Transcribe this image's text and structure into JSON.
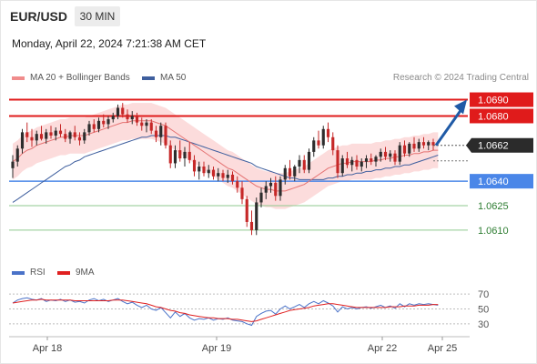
{
  "header": {
    "symbol": "EUR/USD",
    "timeframe": "30 MIN",
    "datetime": "Monday, April 22, 2024 7:21:38 AM CET"
  },
  "legend": {
    "ma20_label": "MA 20 + Bollinger Bands",
    "ma50_label": "MA 50",
    "rsi_label": "RSI",
    "ma9_label": "9MA",
    "credit": "Research © 2024 Trading Central"
  },
  "colors": {
    "up": "#2d2d2d",
    "down": "#c62828",
    "ma20": "#e57373",
    "ma50": "#3f5f9e",
    "bollinger_fill": "#fbd6d6",
    "resistance": "#e01b1b",
    "support": "#4a86e8",
    "target_line": "#8fca8f",
    "target_text": "#2e7d32",
    "rsi": "#4a72c8",
    "rsi_ma": "#e02020",
    "arrow": "#1f5aa6"
  },
  "chart_data": [
    {
      "type": "candlestick",
      "title": "EUR/USD",
      "timeframe": "30 MIN",
      "ylim": [
        1.0596,
        1.0697
      ],
      "x_ticks": [
        "Apr 18",
        "Apr 19",
        "Apr 22",
        "Apr 25"
      ],
      "last_price": "1.0662",
      "levels": [
        {
          "label": "1.0690",
          "value": 1.069,
          "kind": "resistance"
        },
        {
          "label": "1.0680",
          "value": 1.068,
          "kind": "resistance"
        },
        {
          "label": "1.0640",
          "value": 1.064,
          "kind": "support"
        },
        {
          "label": "1.0625",
          "value": 1.0625,
          "kind": "target"
        },
        {
          "label": "1.0610",
          "value": 1.061,
          "kind": "target"
        }
      ],
      "projection": {
        "from": 1.0662,
        "to": 1.069
      },
      "ohlc": [
        [
          1.0648,
          1.0656,
          1.0642,
          1.0652
        ],
        [
          1.0652,
          1.0662,
          1.0649,
          1.066
        ],
        [
          1.066,
          1.0672,
          1.0657,
          1.067
        ],
        [
          1.067,
          1.0676,
          1.0664,
          1.0667
        ],
        [
          1.0667,
          1.0672,
          1.0661,
          1.0665
        ],
        [
          1.0665,
          1.0671,
          1.0662,
          1.0669
        ],
        [
          1.0669,
          1.0674,
          1.0665,
          1.0666
        ],
        [
          1.0666,
          1.0672,
          1.0663,
          1.067
        ],
        [
          1.067,
          1.0674,
          1.0666,
          1.0668
        ],
        [
          1.0668,
          1.0673,
          1.0665,
          1.0671
        ],
        [
          1.0671,
          1.0675,
          1.0667,
          1.0669
        ],
        [
          1.0669,
          1.0672,
          1.0664,
          1.0666
        ],
        [
          1.0666,
          1.0671,
          1.0663,
          1.067
        ],
        [
          1.067,
          1.0674,
          1.0665,
          1.0667
        ],
        [
          1.0667,
          1.067,
          1.0662,
          1.0665
        ],
        [
          1.0665,
          1.0672,
          1.0663,
          1.067
        ],
        [
          1.067,
          1.0677,
          1.0668,
          1.0675
        ],
        [
          1.0675,
          1.0678,
          1.067,
          1.0672
        ],
        [
          1.0672,
          1.0679,
          1.067,
          1.0677
        ],
        [
          1.0677,
          1.0681,
          1.0673,
          1.0675
        ],
        [
          1.0675,
          1.068,
          1.0672,
          1.0678
        ],
        [
          1.0678,
          1.0682,
          1.0676,
          1.068
        ],
        [
          1.068,
          1.0687,
          1.0678,
          1.0685
        ],
        [
          1.0685,
          1.0688,
          1.0679,
          1.0681
        ],
        [
          1.0681,
          1.0684,
          1.0676,
          1.0678
        ],
        [
          1.0678,
          1.0683,
          1.0675,
          1.068
        ],
        [
          1.068,
          1.0682,
          1.0674,
          1.0676
        ],
        [
          1.0676,
          1.0679,
          1.0671,
          1.0674
        ],
        [
          1.0674,
          1.0678,
          1.067,
          1.0676
        ],
        [
          1.0676,
          1.0678,
          1.0669,
          1.0671
        ],
        [
          1.0671,
          1.0674,
          1.0664,
          1.0667
        ],
        [
          1.0667,
          1.0676,
          1.0662,
          1.0674
        ],
        [
          1.0674,
          1.0676,
          1.066,
          1.0662
        ],
        [
          1.0662,
          1.0665,
          1.0648,
          1.0651
        ],
        [
          1.0651,
          1.0662,
          1.0648,
          1.0659
        ],
        [
          1.0659,
          1.0665,
          1.0652,
          1.0654
        ],
        [
          1.0654,
          1.0661,
          1.0649,
          1.0658
        ],
        [
          1.0658,
          1.0664,
          1.0651,
          1.0653
        ],
        [
          1.0653,
          1.0656,
          1.0643,
          1.0646
        ],
        [
          1.0646,
          1.0652,
          1.0641,
          1.0649
        ],
        [
          1.0649,
          1.0652,
          1.0643,
          1.0645
        ],
        [
          1.0645,
          1.065,
          1.0642,
          1.0647
        ],
        [
          1.0647,
          1.0649,
          1.0641,
          1.0643
        ],
        [
          1.0643,
          1.0648,
          1.064,
          1.0645
        ],
        [
          1.0645,
          1.0647,
          1.064,
          1.0642
        ],
        [
          1.0642,
          1.0647,
          1.0639,
          1.0644
        ],
        [
          1.0644,
          1.0646,
          1.0638,
          1.064
        ],
        [
          1.064,
          1.0643,
          1.0633,
          1.0636
        ],
        [
          1.0636,
          1.064,
          1.0626,
          1.0629
        ],
        [
          1.0629,
          1.0631,
          1.0612,
          1.0615
        ],
        [
          1.0615,
          1.0622,
          1.0607,
          1.061
        ],
        [
          1.061,
          1.063,
          1.0607,
          1.0627
        ],
        [
          1.0627,
          1.0636,
          1.0624,
          1.0633
        ],
        [
          1.0633,
          1.064,
          1.0629,
          1.0637
        ],
        [
          1.0637,
          1.0642,
          1.0633,
          1.0639
        ],
        [
          1.0639,
          1.0643,
          1.0628,
          1.0631
        ],
        [
          1.0631,
          1.0643,
          1.0628,
          1.0641
        ],
        [
          1.0641,
          1.065,
          1.0638,
          1.0648
        ],
        [
          1.0648,
          1.0653,
          1.0641,
          1.0643
        ],
        [
          1.0643,
          1.065,
          1.064,
          1.0649
        ],
        [
          1.0649,
          1.0656,
          1.0645,
          1.0653
        ],
        [
          1.0653,
          1.0656,
          1.0645,
          1.0647
        ],
        [
          1.0647,
          1.066,
          1.0645,
          1.0658
        ],
        [
          1.0658,
          1.0667,
          1.0655,
          1.0665
        ],
        [
          1.0665,
          1.0671,
          1.066,
          1.0662
        ],
        [
          1.0662,
          1.0674,
          1.066,
          1.0672
        ],
        [
          1.0672,
          1.0676,
          1.0664,
          1.0667
        ],
        [
          1.0667,
          1.067,
          1.0656,
          1.0659
        ],
        [
          1.0659,
          1.0662,
          1.0642,
          1.0645
        ],
        [
          1.0645,
          1.0656,
          1.0643,
          1.0654
        ],
        [
          1.0654,
          1.0658,
          1.0648,
          1.065
        ],
        [
          1.065,
          1.0655,
          1.0646,
          1.0653
        ],
        [
          1.0653,
          1.0656,
          1.0647,
          1.0649
        ],
        [
          1.0649,
          1.0654,
          1.0646,
          1.0652
        ],
        [
          1.0652,
          1.0656,
          1.0648,
          1.0654
        ],
        [
          1.0654,
          1.0657,
          1.065,
          1.0652
        ],
        [
          1.0652,
          1.0656,
          1.0649,
          1.0655
        ],
        [
          1.0655,
          1.066,
          1.0652,
          1.0658
        ],
        [
          1.0658,
          1.0661,
          1.0653,
          1.0655
        ],
        [
          1.0655,
          1.0659,
          1.0652,
          1.0657
        ],
        [
          1.0657,
          1.0659,
          1.065,
          1.0652
        ],
        [
          1.0652,
          1.0664,
          1.065,
          1.0662
        ],
        [
          1.0662,
          1.0665,
          1.0655,
          1.0657
        ],
        [
          1.0657,
          1.0664,
          1.0655,
          1.0663
        ],
        [
          1.0663,
          1.0667,
          1.0658,
          1.066
        ],
        [
          1.066,
          1.0666,
          1.0658,
          1.0664
        ],
        [
          1.0664,
          1.0667,
          1.066,
          1.0662
        ],
        [
          1.0662,
          1.0665,
          1.0659,
          1.0664
        ],
        [
          1.0664,
          1.0666,
          1.0659,
          1.0662
        ]
      ],
      "series": [
        {
          "name": "MA 20",
          "values": [
            1.0652,
            1.0654,
            1.0657,
            1.0659,
            1.066,
            1.0662,
            1.0663,
            1.0664,
            1.0665,
            1.0666,
            1.0667,
            1.0667,
            1.0668,
            1.0668,
            1.0668,
            1.0668,
            1.0669,
            1.067,
            1.0671,
            1.0672,
            1.0673,
            1.0674,
            1.0675,
            1.0676,
            1.0676,
            1.0677,
            1.0677,
            1.0677,
            1.0677,
            1.0677,
            1.0676,
            1.0675,
            1.0674,
            1.0672,
            1.067,
            1.0668,
            1.0666,
            1.0664,
            1.0662,
            1.066,
            1.0658,
            1.0656,
            1.0654,
            1.0652,
            1.065,
            1.0648,
            1.0647,
            1.0645,
            1.0643,
            1.0641,
            1.0639,
            1.0637,
            1.0636,
            1.0635,
            1.0635,
            1.0634,
            1.0634,
            1.0634,
            1.0635,
            1.0636,
            1.0637,
            1.0638,
            1.064,
            1.0642,
            1.0644,
            1.0646,
            1.0648,
            1.0649,
            1.065,
            1.0651,
            1.0651,
            1.0652,
            1.0652,
            1.0652,
            1.0652,
            1.0652,
            1.0653,
            1.0653,
            1.0654,
            1.0654,
            1.0655,
            1.0655,
            1.0656,
            1.0656,
            1.0657,
            1.0657,
            1.0658,
            1.0658,
            1.0659,
            1.0659
          ]
        },
        {
          "name": "MA 50",
          "values": [
            1.0627,
            1.0629,
            1.0631,
            1.0633,
            1.0635,
            1.0637,
            1.0639,
            1.0641,
            1.0643,
            1.0645,
            1.0647,
            1.0649,
            1.065,
            1.0652,
            1.0653,
            1.0655,
            1.0656,
            1.0657,
            1.0658,
            1.0659,
            1.066,
            1.0661,
            1.0662,
            1.0663,
            1.0664,
            1.0665,
            1.0666,
            1.0667,
            1.0667,
            1.0668,
            1.0668,
            1.0668,
            1.0668,
            1.0667,
            1.0667,
            1.0666,
            1.0665,
            1.0664,
            1.0663,
            1.0662,
            1.0661,
            1.066,
            1.0659,
            1.0658,
            1.0657,
            1.0656,
            1.0655,
            1.0654,
            1.0653,
            1.0652,
            1.0651,
            1.0649,
            1.0648,
            1.0647,
            1.0646,
            1.0645,
            1.0644,
            1.0643,
            1.0642,
            1.0642,
            1.0641,
            1.0641,
            1.0641,
            1.0641,
            1.0641,
            1.0641,
            1.0642,
            1.0642,
            1.0643,
            1.0643,
            1.0644,
            1.0644,
            1.0645,
            1.0645,
            1.0646,
            1.0646,
            1.0647,
            1.0647,
            1.0648,
            1.0648,
            1.0649,
            1.0649,
            1.065,
            1.065,
            1.0651,
            1.0652,
            1.0653,
            1.0654,
            1.0655,
            1.0656
          ]
        }
      ],
      "bollinger_width": 0.0011
    },
    {
      "type": "line",
      "title": "RSI",
      "ylim": [
        20,
        80
      ],
      "y_ticks": [
        70,
        50,
        30
      ],
      "series": [
        {
          "name": "RSI",
          "values": [
            58,
            62,
            64,
            65,
            63,
            62,
            64,
            60,
            62,
            61,
            63,
            60,
            62,
            59,
            60,
            58,
            62,
            64,
            61,
            63,
            60,
            62,
            64,
            60,
            57,
            59,
            55,
            52,
            55,
            50,
            48,
            52,
            45,
            38,
            46,
            40,
            44,
            38,
            35,
            37,
            36,
            38,
            35,
            37,
            36,
            38,
            35,
            34,
            33,
            30,
            28,
            40,
            44,
            47,
            48,
            43,
            50,
            54,
            50,
            53,
            56,
            52,
            57,
            60,
            57,
            61,
            58,
            54,
            46,
            53,
            50,
            52,
            50,
            52,
            53,
            51,
            53,
            55,
            52,
            54,
            51,
            57,
            53,
            57,
            55,
            57,
            56,
            57,
            56,
            55
          ]
        },
        {
          "name": "9MA",
          "values": [
            58,
            59,
            60,
            61,
            62,
            62,
            63,
            62,
            62,
            62,
            62,
            62,
            62,
            61,
            61,
            61,
            61,
            61,
            61,
            61,
            61,
            62,
            62,
            62,
            61,
            60,
            59,
            58,
            57,
            55,
            53,
            52,
            50,
            48,
            47,
            45,
            44,
            42,
            41,
            40,
            39,
            38,
            38,
            37,
            37,
            37,
            36,
            36,
            35,
            34,
            33,
            34,
            36,
            38,
            40,
            42,
            44,
            46,
            48,
            49,
            50,
            51,
            52,
            54,
            55,
            56,
            57,
            57,
            56,
            55,
            54,
            53,
            52,
            52,
            52,
            52,
            52,
            52,
            52,
            53,
            53,
            53,
            54,
            54,
            54,
            55,
            55,
            55,
            56,
            56
          ]
        }
      ]
    }
  ]
}
